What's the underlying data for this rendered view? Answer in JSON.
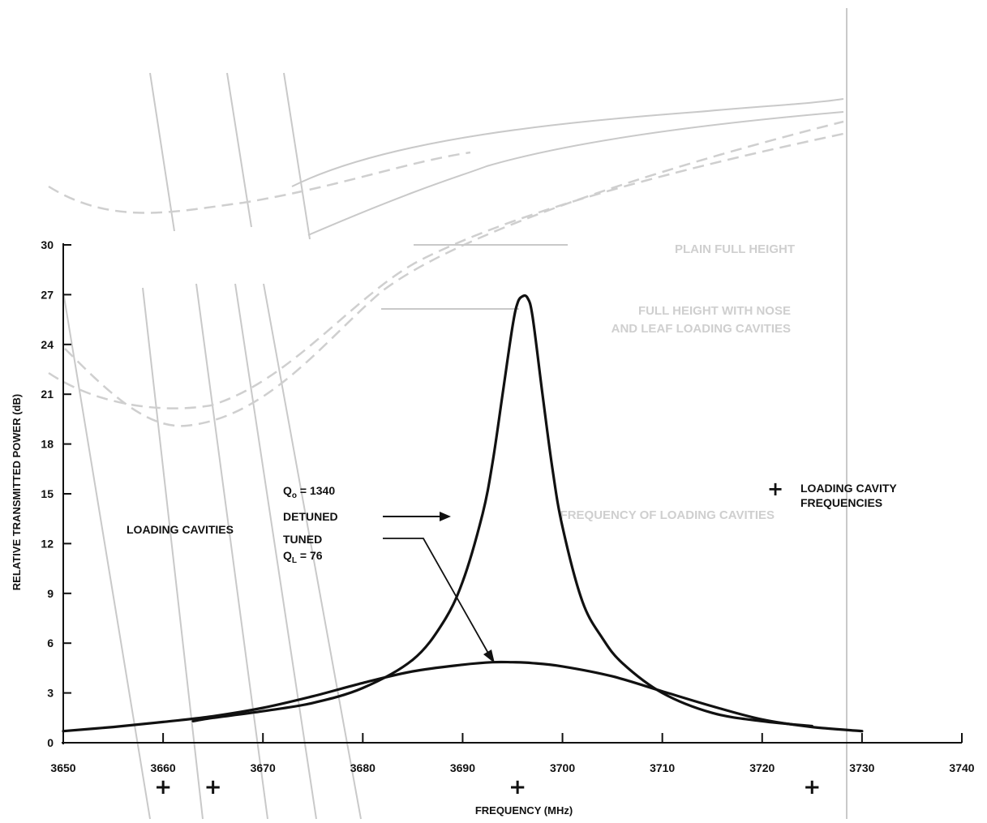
{
  "chart_data": {
    "type": "line",
    "xlabel": "FREQUENCY (MHz)",
    "ylabel": "RELATIVE TRANSMITTED POWER (dB)",
    "xlim": [
      3650,
      3740
    ],
    "ylim": [
      0,
      30
    ],
    "x_ticks": [
      "3650",
      "3660",
      "3670",
      "3680",
      "3690",
      "3700",
      "3710",
      "3720",
      "3730",
      "3740"
    ],
    "y_ticks": [
      "0",
      "3",
      "6",
      "9",
      "12",
      "15",
      "18",
      "21",
      "24",
      "27",
      "30"
    ],
    "series": [
      {
        "name": "DETUNED",
        "x": [
          3663,
          3665,
          3670,
          3675,
          3680,
          3685,
          3688,
          3690,
          3692,
          3693,
          3694,
          3695,
          3695.5,
          3696,
          3696.5,
          3697,
          3698,
          3699,
          3700,
          3702,
          3704,
          3706,
          3710,
          3715,
          3720,
          3725
        ],
        "values": [
          1.3,
          1.5,
          1.9,
          2.4,
          3.3,
          5.0,
          7.2,
          9.7,
          13.8,
          16.9,
          21.0,
          25.1,
          26.5,
          26.9,
          26.8,
          25.7,
          21.0,
          16.5,
          13.0,
          8.5,
          6.3,
          4.8,
          3.0,
          1.8,
          1.3,
          1.0
        ],
        "color": "#111111"
      },
      {
        "name": "TUNED",
        "x": [
          3650,
          3655,
          3660,
          3665,
          3670,
          3675,
          3680,
          3685,
          3690,
          3693,
          3695,
          3697,
          3700,
          3705,
          3710,
          3715,
          3720,
          3725,
          3730
        ],
        "values": [
          0.7,
          0.95,
          1.25,
          1.6,
          2.1,
          2.8,
          3.6,
          4.3,
          4.7,
          4.85,
          4.85,
          4.8,
          4.6,
          4.0,
          3.1,
          2.2,
          1.4,
          0.95,
          0.7
        ],
        "color": "#111111"
      }
    ],
    "annotations": {
      "qo_label": "Q",
      "qo_sub": "o",
      "qo_value": " = 1340",
      "detuned": "DETUNED",
      "loading_cavities": "LOADING CAVITIES",
      "tuned": "TUNED",
      "ql_label": "Q",
      "ql_sub": "L",
      "ql_value": " = 76",
      "legend_symbol": "+",
      "legend_line1": "LOADING CAVITY",
      "legend_line2": "FREQUENCIES"
    },
    "loading_cavity_frequencies": [
      3660,
      3665,
      3695.5,
      3725
    ],
    "grid": false
  },
  "bleed_through_text": {
    "plain_full_height": "PLAIN FULL HEIGHT",
    "full_height_1": "FULL HEIGHT WITH NOSE",
    "full_height_2": "AND LEAF LOADING CAVITIES",
    "freq_of_loading": "FREQUENCY OF LOADING CAVITIES"
  },
  "colors": {
    "ink": "#111111",
    "bleed": "#c9c9c9",
    "background": "#ffffff"
  }
}
